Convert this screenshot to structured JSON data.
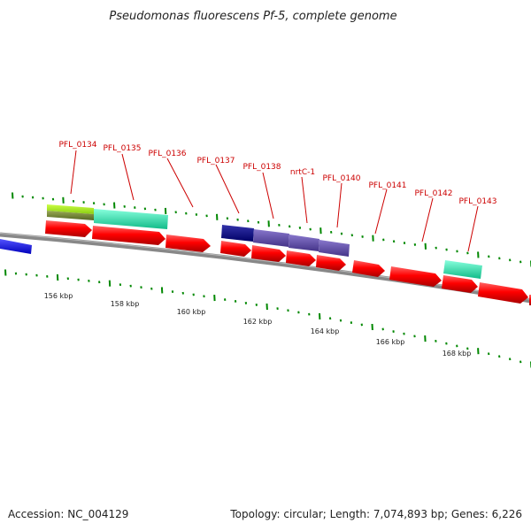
{
  "title": "Pseudomonas fluorescens Pf-5, complete genome",
  "footer": {
    "accession": "Accession: NC_004129",
    "summary": "Topology: circular; Length: 7,074,893 bp; Genes: 6,226"
  },
  "scale_labels": [
    "156 kbp",
    "158 kbp",
    "160 kbp",
    "162 kbp",
    "164 kbp",
    "166 kbp",
    "168 kbp"
  ],
  "gene_labels": [
    "PFL_0134",
    "PFL_0135",
    "PFL_0136",
    "PFL_0137",
    "PFL_0138",
    "nrtC-1",
    "PFL_0140",
    "PFL_0141",
    "PFL_0142",
    "PFL_0143"
  ],
  "colors": {
    "cds_forward": "#ff0000",
    "backbone": "#888888",
    "tick": "#008800",
    "label": "#cc0000",
    "blue_feature": "#0000ee",
    "cog_teal": "#33eeaa",
    "cog_yellowgreen": "#aaee22",
    "cog_olive": "#778833",
    "cog_navy": "#000088",
    "cog_purple": "#554499"
  }
}
